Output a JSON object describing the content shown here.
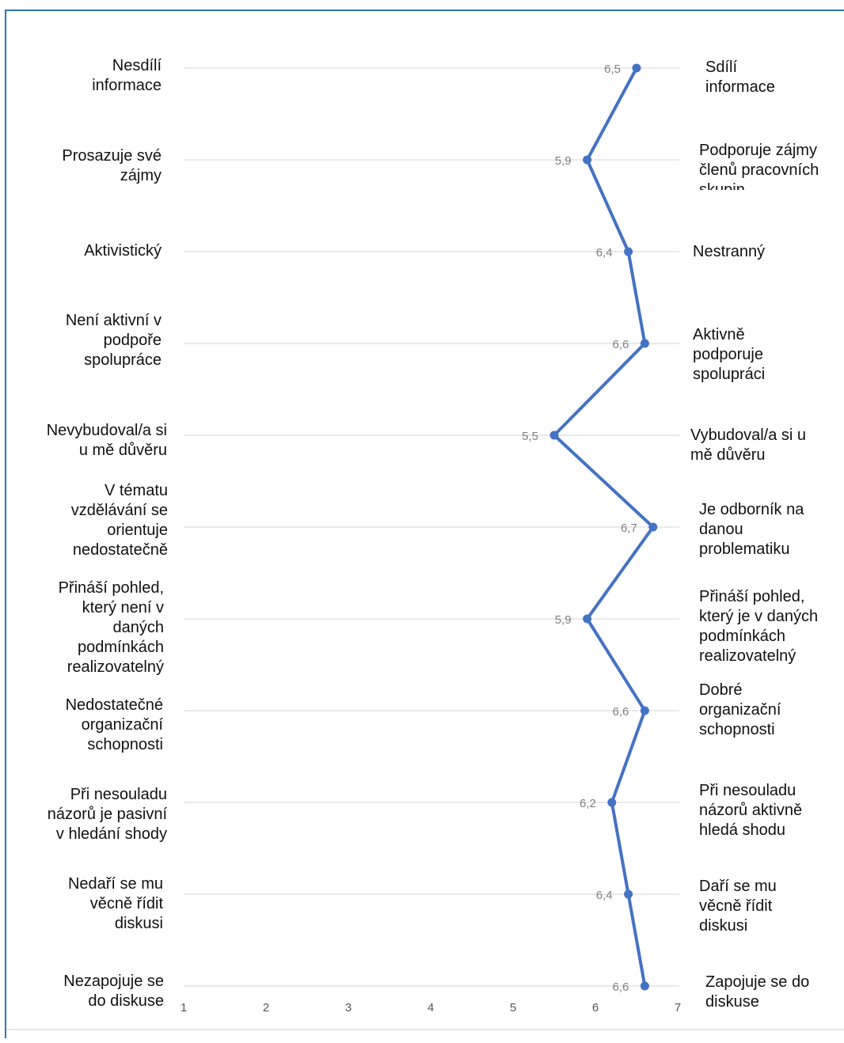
{
  "chart_data": {
    "type": "line",
    "orientation": "horizontal",
    "xlim": [
      1,
      7
    ],
    "x_ticks": [
      "1",
      "2",
      "3",
      "4",
      "5",
      "6",
      "7"
    ],
    "grid": "horizontal",
    "series_color": "#4472c4",
    "rows": [
      {
        "left": [
          "Nesdílí",
          "informace"
        ],
        "right": [
          "Sdílí",
          "informace"
        ],
        "value": 6.5,
        "value_label": "6,5"
      },
      {
        "left": [
          "Prosazuje své",
          "zájmy"
        ],
        "right": [
          "Podporuje zájmy",
          "členů pracovních",
          "skupin"
        ],
        "value": 5.9,
        "value_label": "5,9"
      },
      {
        "left": [
          "Aktivistický"
        ],
        "right": [
          "Nestranný"
        ],
        "value": 6.4,
        "value_label": "6,4"
      },
      {
        "left": [
          "Není aktivní v",
          "podpoře",
          "spolupráce"
        ],
        "right": [
          "Aktivně",
          "podporuje",
          "spolupráci"
        ],
        "value": 6.6,
        "value_label": "6,6"
      },
      {
        "left": [
          "Nevybudoval/a si",
          "u mě důvěru"
        ],
        "right": [
          "Vybudoval/a si u",
          "mě důvěru"
        ],
        "value": 5.5,
        "value_label": "5,5"
      },
      {
        "left": [
          "V tématu",
          "vzdělávání se",
          "orientuje",
          "nedostatečně"
        ],
        "right": [
          "Je odborník na",
          "danou",
          "problematiku"
        ],
        "value": 6.7,
        "value_label": "6,7"
      },
      {
        "left": [
          "Přináší pohled,",
          "který není v",
          "daných",
          "podmínkách",
          "realizovatelný"
        ],
        "right": [
          "Přináší pohled,",
          "který je v daných",
          "podmínkách",
          "realizovatelný"
        ],
        "value": 5.9,
        "value_label": "5,9"
      },
      {
        "left": [
          "Nedostatečné",
          "organizační",
          "schopnosti"
        ],
        "right": [
          "Dobré",
          "organizační",
          "schopnosti"
        ],
        "value": 6.6,
        "value_label": "6,6"
      },
      {
        "left": [
          "Při nesouladu",
          "názorů je pasivní",
          "v hledání shody"
        ],
        "right": [
          "Při nesouladu",
          "názorů aktivně",
          "hledá shodu"
        ],
        "value": 6.2,
        "value_label": "6,2"
      },
      {
        "left": [
          "Nedaří se mu",
          "věcně řídit",
          "diskusi"
        ],
        "right": [
          "Daří se mu",
          "věcně řídit",
          "diskusi"
        ],
        "value": 6.4,
        "value_label": "6,4"
      },
      {
        "left": [
          "Nezapojuje se",
          "do diskuse"
        ],
        "right": [
          "Zapojuje se do",
          "diskuse"
        ],
        "value": 6.6,
        "value_label": "6,6"
      }
    ]
  }
}
